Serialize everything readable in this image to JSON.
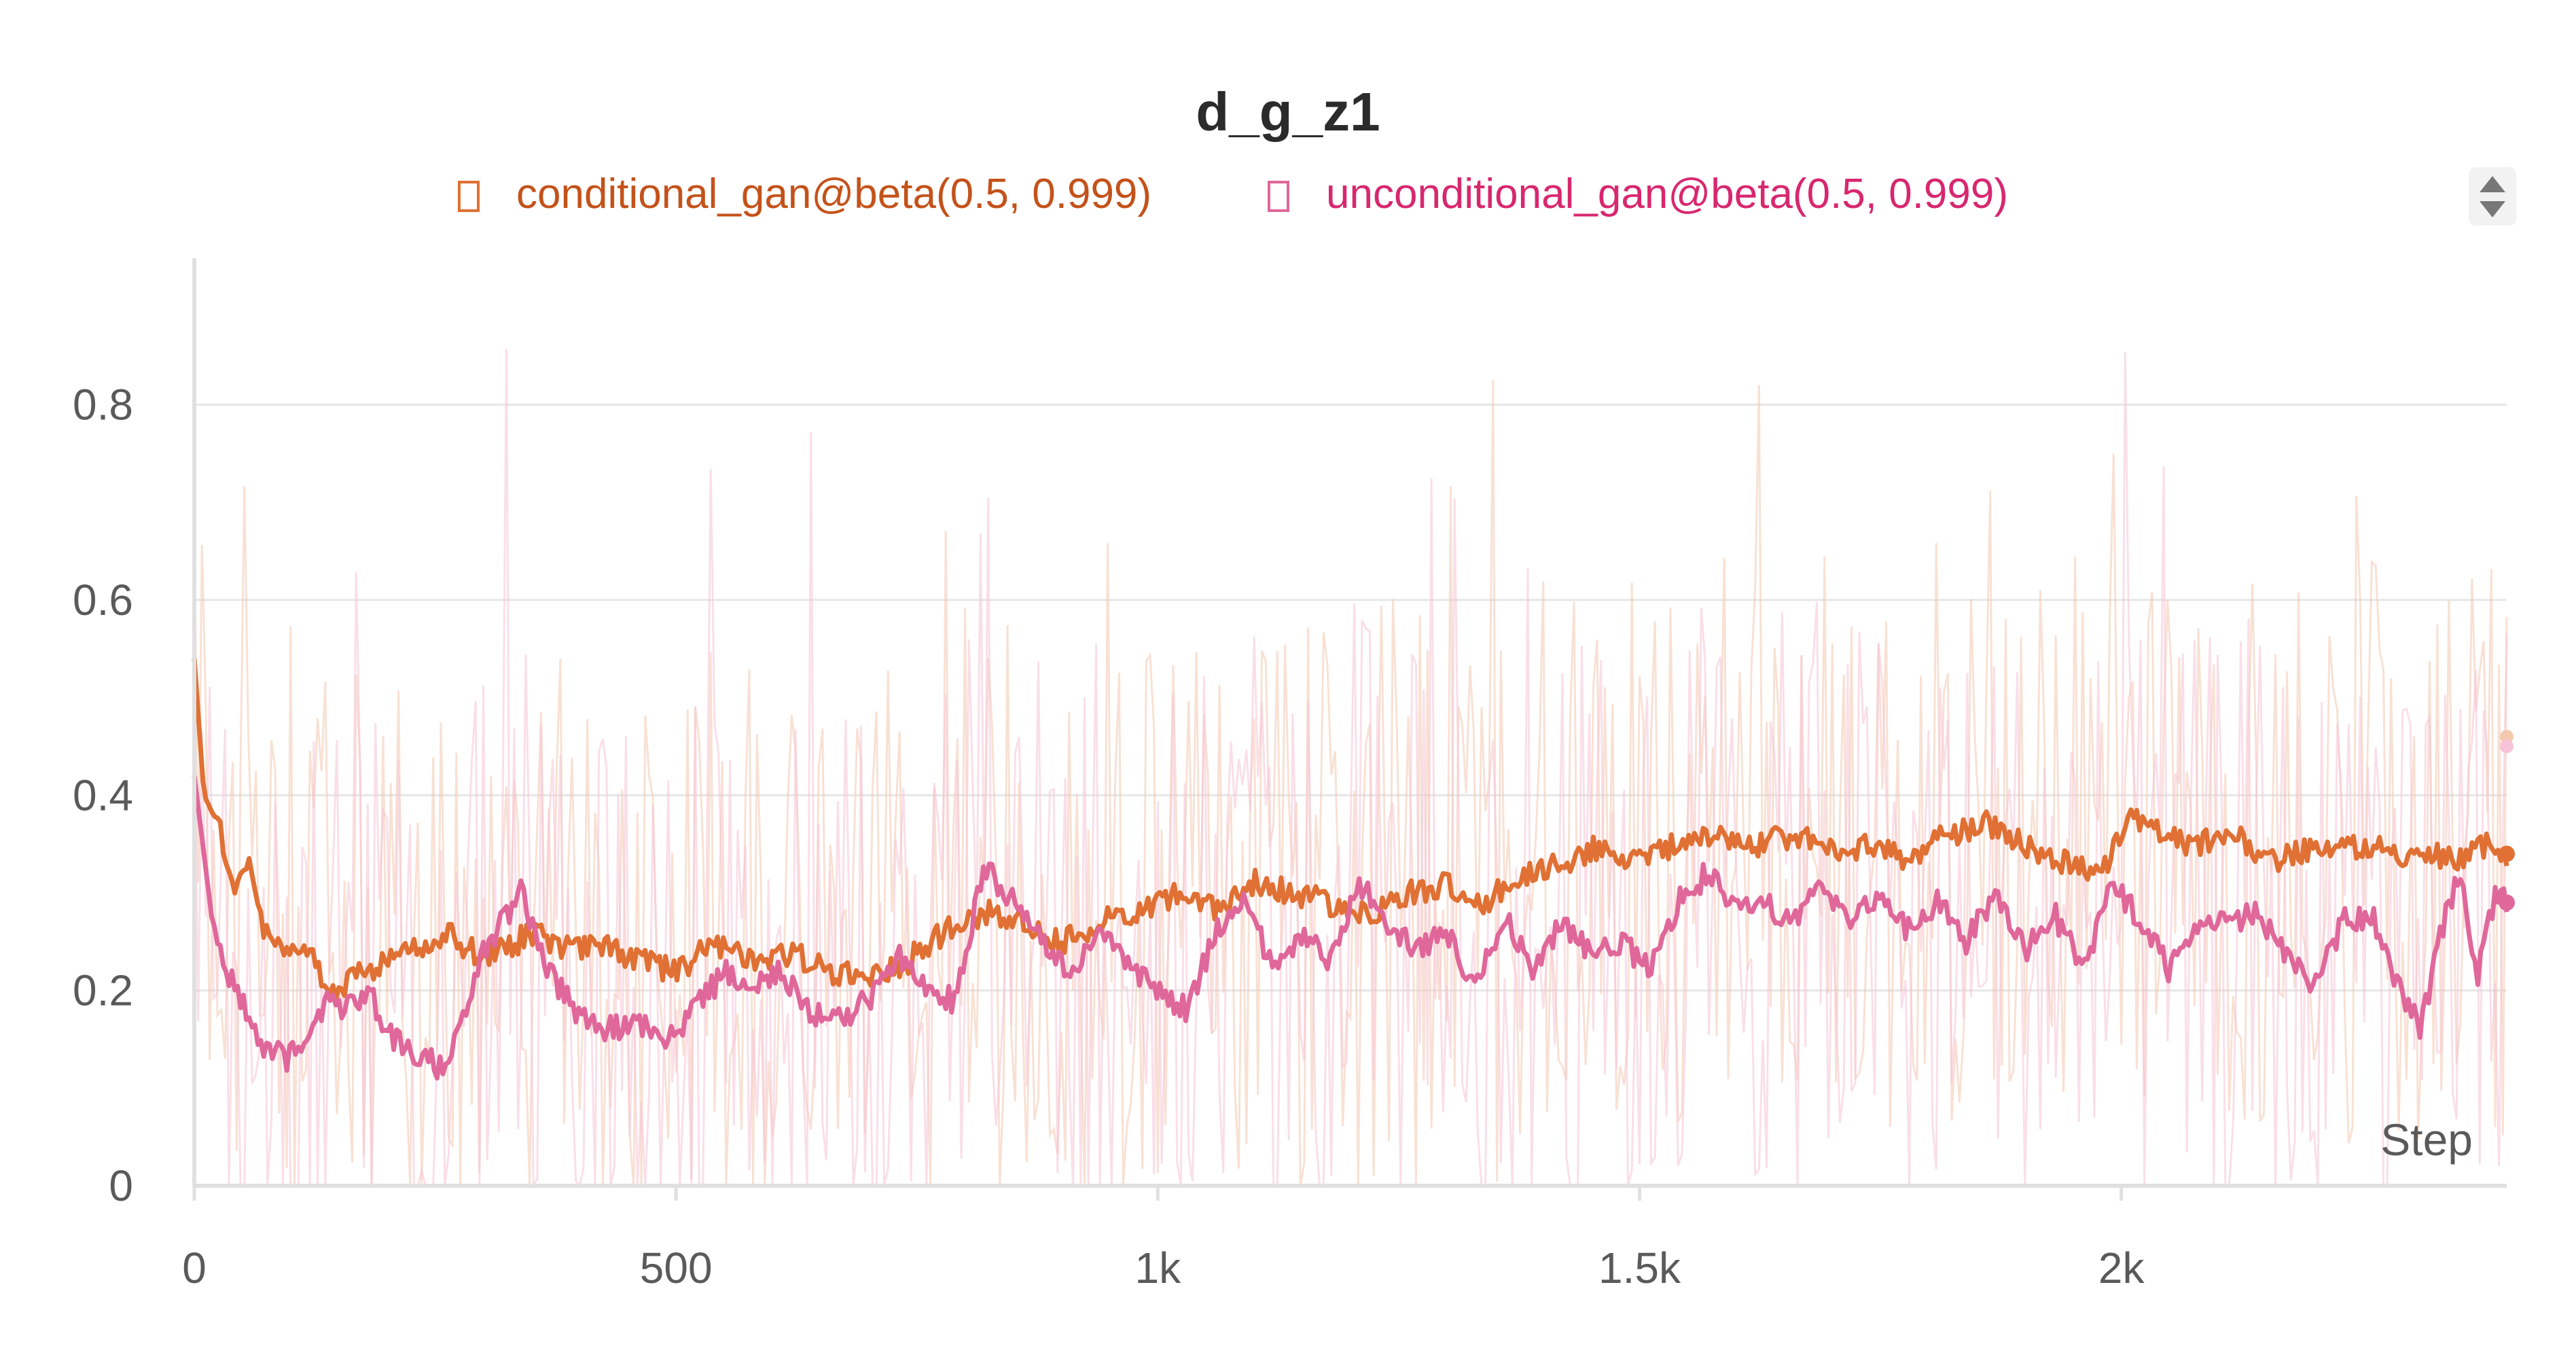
{
  "panel": {
    "title": "d_g_z1"
  },
  "legend": {
    "placement": "top-center",
    "scroll_icon": "up-down-arrows-icon"
  },
  "colors": {
    "conditional": "#e07033",
    "unconditional": "#e0679a",
    "conditional_raw": "#f3c9b0",
    "unconditional_raw": "#f6c4d6",
    "conditional_legend_text": "#c4521a",
    "unconditional_legend_text": "#d8276f",
    "grid": "#e6e6e6",
    "axis": "#e0e0e0",
    "tick_text": "#5a5a5a",
    "title_text": "#2b2b2b"
  },
  "chart_data": {
    "type": "line",
    "title": "d_g_z1",
    "xlabel": "Step",
    "ylabel": "",
    "xlim": [
      0,
      2400
    ],
    "ylim": [
      0,
      0.95
    ],
    "x_ticks": [
      {
        "value": 0,
        "label": "0"
      },
      {
        "value": 500,
        "label": "500"
      },
      {
        "value": 1000,
        "label": "1k"
      },
      {
        "value": 1500,
        "label": "1.5k"
      },
      {
        "value": 2000,
        "label": "2k"
      }
    ],
    "y_ticks": [
      {
        "value": 0,
        "label": "0"
      },
      {
        "value": 0.2,
        "label": "0.2"
      },
      {
        "value": 0.4,
        "label": "0.4"
      },
      {
        "value": 0.6,
        "label": "0.6"
      },
      {
        "value": 0.8,
        "label": "0.8"
      }
    ],
    "grid": true,
    "series": [
      {
        "name": "conditional_gan@beta(0.5, 0.999)",
        "smoothed": [
          [
            0,
            0.54
          ],
          [
            10,
            0.4
          ],
          [
            25,
            0.37
          ],
          [
            40,
            0.31
          ],
          [
            55,
            0.33
          ],
          [
            70,
            0.27
          ],
          [
            90,
            0.24
          ],
          [
            110,
            0.25
          ],
          [
            130,
            0.22
          ],
          [
            150,
            0.2
          ],
          [
            175,
            0.22
          ],
          [
            200,
            0.23
          ],
          [
            230,
            0.24
          ],
          [
            260,
            0.26
          ],
          [
            290,
            0.24
          ],
          [
            320,
            0.24
          ],
          [
            350,
            0.26
          ],
          [
            380,
            0.24
          ],
          [
            420,
            0.25
          ],
          [
            460,
            0.23
          ],
          [
            500,
            0.22
          ],
          [
            540,
            0.25
          ],
          [
            580,
            0.23
          ],
          [
            620,
            0.24
          ],
          [
            660,
            0.22
          ],
          [
            700,
            0.21
          ],
          [
            740,
            0.23
          ],
          [
            780,
            0.26
          ],
          [
            820,
            0.28
          ],
          [
            860,
            0.27
          ],
          [
            900,
            0.25
          ],
          [
            940,
            0.27
          ],
          [
            980,
            0.28
          ],
          [
            1020,
            0.3
          ],
          [
            1060,
            0.28
          ],
          [
            1100,
            0.31
          ],
          [
            1140,
            0.3
          ],
          [
            1180,
            0.29
          ],
          [
            1220,
            0.28
          ],
          [
            1260,
            0.3
          ],
          [
            1300,
            0.31
          ],
          [
            1340,
            0.29
          ],
          [
            1380,
            0.32
          ],
          [
            1420,
            0.33
          ],
          [
            1460,
            0.35
          ],
          [
            1500,
            0.33
          ],
          [
            1540,
            0.35
          ],
          [
            1580,
            0.36
          ],
          [
            1620,
            0.35
          ],
          [
            1660,
            0.36
          ],
          [
            1700,
            0.34
          ],
          [
            1740,
            0.35
          ],
          [
            1780,
            0.33
          ],
          [
            1820,
            0.36
          ],
          [
            1860,
            0.37
          ],
          [
            1900,
            0.35
          ],
          [
            1940,
            0.33
          ],
          [
            1980,
            0.32
          ],
          [
            2010,
            0.38
          ],
          [
            2040,
            0.36
          ],
          [
            2080,
            0.35
          ],
          [
            2120,
            0.36
          ],
          [
            2160,
            0.33
          ],
          [
            2200,
            0.35
          ],
          [
            2240,
            0.35
          ],
          [
            2280,
            0.34
          ],
          [
            2320,
            0.34
          ],
          [
            2350,
            0.33
          ],
          [
            2380,
            0.35
          ],
          [
            2400,
            0.34
          ]
        ],
        "end_value": 0.34
      },
      {
        "name": "unconditional_gan@beta(0.5, 0.999)",
        "smoothed": [
          [
            0,
            0.42
          ],
          [
            10,
            0.34
          ],
          [
            20,
            0.26
          ],
          [
            35,
            0.22
          ],
          [
            50,
            0.19
          ],
          [
            65,
            0.15
          ],
          [
            80,
            0.14
          ],
          [
            100,
            0.13
          ],
          [
            120,
            0.16
          ],
          [
            140,
            0.19
          ],
          [
            160,
            0.18
          ],
          [
            180,
            0.2
          ],
          [
            200,
            0.16
          ],
          [
            220,
            0.14
          ],
          [
            240,
            0.13
          ],
          [
            260,
            0.12
          ],
          [
            280,
            0.18
          ],
          [
            300,
            0.24
          ],
          [
            320,
            0.27
          ],
          [
            340,
            0.3
          ],
          [
            360,
            0.24
          ],
          [
            380,
            0.2
          ],
          [
            400,
            0.17
          ],
          [
            430,
            0.16
          ],
          [
            460,
            0.17
          ],
          [
            490,
            0.15
          ],
          [
            520,
            0.18
          ],
          [
            550,
            0.22
          ],
          [
            580,
            0.2
          ],
          [
            610,
            0.22
          ],
          [
            640,
            0.18
          ],
          [
            670,
            0.17
          ],
          [
            700,
            0.19
          ],
          [
            730,
            0.24
          ],
          [
            760,
            0.2
          ],
          [
            790,
            0.19
          ],
          [
            820,
            0.33
          ],
          [
            850,
            0.29
          ],
          [
            880,
            0.25
          ],
          [
            910,
            0.22
          ],
          [
            940,
            0.26
          ],
          [
            970,
            0.22
          ],
          [
            1000,
            0.2
          ],
          [
            1030,
            0.18
          ],
          [
            1060,
            0.26
          ],
          [
            1090,
            0.3
          ],
          [
            1120,
            0.22
          ],
          [
            1150,
            0.26
          ],
          [
            1180,
            0.23
          ],
          [
            1210,
            0.31
          ],
          [
            1240,
            0.27
          ],
          [
            1270,
            0.24
          ],
          [
            1300,
            0.26
          ],
          [
            1330,
            0.2
          ],
          [
            1360,
            0.28
          ],
          [
            1390,
            0.22
          ],
          [
            1420,
            0.27
          ],
          [
            1450,
            0.24
          ],
          [
            1480,
            0.25
          ],
          [
            1510,
            0.22
          ],
          [
            1540,
            0.29
          ],
          [
            1570,
            0.32
          ],
          [
            1600,
            0.28
          ],
          [
            1630,
            0.29
          ],
          [
            1660,
            0.27
          ],
          [
            1690,
            0.31
          ],
          [
            1720,
            0.27
          ],
          [
            1750,
            0.3
          ],
          [
            1780,
            0.26
          ],
          [
            1810,
            0.29
          ],
          [
            1840,
            0.25
          ],
          [
            1870,
            0.3
          ],
          [
            1900,
            0.24
          ],
          [
            1930,
            0.28
          ],
          [
            1960,
            0.22
          ],
          [
            1990,
            0.31
          ],
          [
            2020,
            0.27
          ],
          [
            2050,
            0.22
          ],
          [
            2080,
            0.26
          ],
          [
            2110,
            0.27
          ],
          [
            2140,
            0.28
          ],
          [
            2170,
            0.24
          ],
          [
            2200,
            0.2
          ],
          [
            2230,
            0.27
          ],
          [
            2260,
            0.28
          ],
          [
            2290,
            0.2
          ],
          [
            2310,
            0.16
          ],
          [
            2330,
            0.25
          ],
          [
            2350,
            0.32
          ],
          [
            2370,
            0.22
          ],
          [
            2390,
            0.3
          ],
          [
            2400,
            0.29
          ]
        ],
        "end_value": 0.29
      }
    ]
  }
}
